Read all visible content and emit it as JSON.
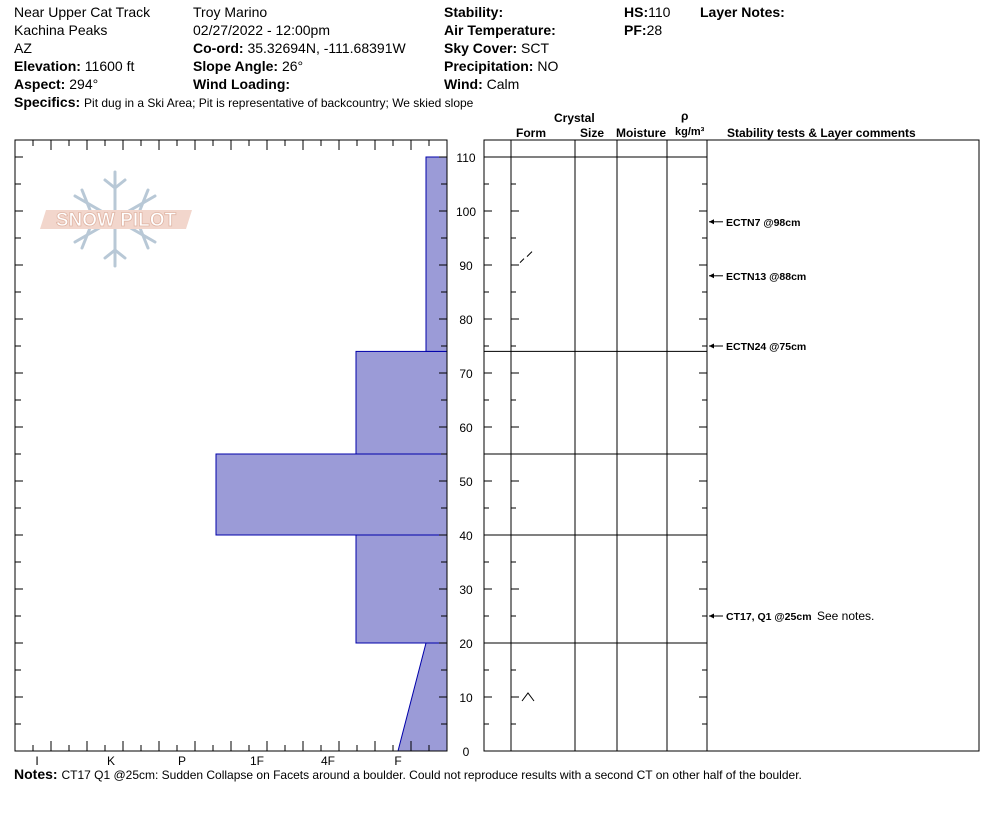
{
  "header": {
    "location": "Near Upper Cat Track",
    "area": "Kachina Peaks",
    "state": "AZ",
    "elevation_label": "Elevation:",
    "elevation_value": "11600 ft",
    "aspect_label": "Aspect:",
    "aspect_value": "294°",
    "observer": "Troy Marino",
    "datetime": "02/27/2022 - 12:00pm",
    "coord_label": "Co-ord:",
    "coord_value": "35.32694N, -111.68391W",
    "slope_label": "Slope Angle:",
    "slope_value": "26°",
    "wind_loading_label": "Wind Loading:",
    "wind_loading_value": "",
    "stability_label": "Stability:",
    "stability_value": "",
    "air_temp_label": "Air Temperature:",
    "air_temp_value": "",
    "sky_label": "Sky Cover:",
    "sky_value": "SCT",
    "precip_label": "Precipitation:",
    "precip_value": "NO",
    "wind_label": "Wind:",
    "wind_value": "Calm",
    "hs_label": "HS:",
    "hs_value": "110",
    "pf_label": "PF:",
    "pf_value": "28",
    "layer_notes_label": "Layer Notes:",
    "specifics_label": "Specifics:",
    "specifics_value": "Pit dug in a Ski Area;  Pit is representative of backcountry;  We skied slope"
  },
  "columns": {
    "crystal": "Crystal",
    "form": "Form",
    "size": "Size",
    "moisture": "Moisture",
    "rho": "ρ",
    "density_unit": "kg/m³",
    "stability": "Stability tests & Layer comments"
  },
  "logo": {
    "text": "SNOW PILOT"
  },
  "notes": {
    "label": "Notes:",
    "text": "CT17 Q1 @25cm: Sudden Collapse on Facets around a boulder. Could not reproduce results with a second CT on other half of the boulder."
  },
  "chart_data": {
    "type": "bar",
    "title": "",
    "xlabel": "",
    "ylabel": "",
    "ylim": [
      0,
      110
    ],
    "y_ticks": [
      0,
      10,
      20,
      30,
      40,
      50,
      60,
      70,
      80,
      90,
      100,
      110
    ],
    "hardness_scale": [
      "I",
      "K",
      "P",
      "1F",
      "4F",
      "F"
    ],
    "hardness_scale_index": {
      "F": 0,
      "4F": 1,
      "1F": 2,
      "P": 3,
      "K": 4,
      "I": 5
    },
    "layers": [
      {
        "bottom": 0,
        "top": 20,
        "hardness_bottom": "F-",
        "hardness_top": "4F-",
        "hardness_bottom_value": 0.7,
        "hardness_top_value": 0.3
      },
      {
        "bottom": 20,
        "top": 40,
        "hardness_value": 1.3
      },
      {
        "bottom": 40,
        "top": 55,
        "hardness_value": 3.3
      },
      {
        "bottom": 55,
        "top": 74,
        "hardness_value": 1.3
      },
      {
        "bottom": 74,
        "top": 110,
        "hardness_value": 0.3
      }
    ],
    "layer_boundaries": [
      20,
      40,
      55,
      74,
      110
    ],
    "grain_forms": [
      {
        "depth": 91,
        "symbol": "decomposing"
      },
      {
        "depth": 10,
        "symbol": "facet-rounding"
      }
    ],
    "stability_tests": [
      {
        "depth": 98,
        "label": "ECTN7 @98cm",
        "comment": ""
      },
      {
        "depth": 88,
        "label": "ECTN13 @88cm",
        "comment": ""
      },
      {
        "depth": 75,
        "label": "ECTN24 @75cm",
        "comment": ""
      },
      {
        "depth": 25,
        "label": "CT17, Q1 @25cm",
        "comment": "See notes."
      }
    ]
  }
}
